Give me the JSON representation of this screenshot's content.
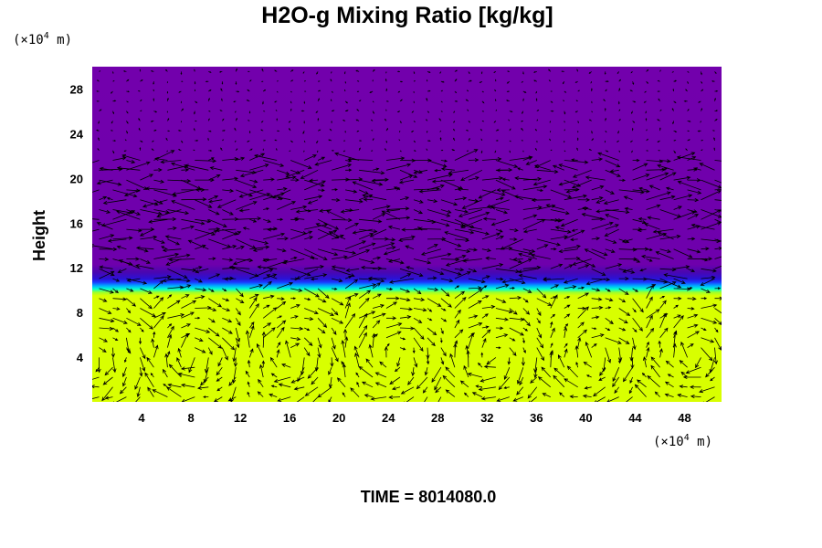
{
  "chart_data": {
    "type": "heatmap",
    "title": "H2O-g Mixing Ratio [kg/kg]",
    "ylabel": "Height",
    "x_unit": {
      "prefix": "(×10",
      "exp": "4",
      "suffix": " m)"
    },
    "y_unit": {
      "prefix": "(×10",
      "exp": "4",
      "suffix": " m)"
    },
    "footer": "TIME = 8014080.0",
    "xlim": [
      0,
      51
    ],
    "ylim": [
      0,
      30
    ],
    "x_ticks": [
      4,
      8,
      12,
      16,
      20,
      24,
      28,
      32,
      36,
      40,
      44,
      48
    ],
    "x_tick_labels": [
      "4",
      "8",
      "12",
      "16",
      "20",
      "24",
      "28",
      "32",
      "36",
      "40",
      "44",
      "48"
    ],
    "y_ticks": [
      4,
      8,
      12,
      16,
      20,
      24,
      28
    ],
    "y_tick_labels": [
      "4",
      "8",
      "12",
      "16",
      "20",
      "24",
      "28"
    ],
    "field_profile": {
      "height": [
        0,
        9.5,
        9.8,
        10.1,
        10.4,
        10.7,
        11.0,
        11.6,
        12.3,
        30
      ],
      "colors": [
        "#d8ff00",
        "#d8ff00",
        "#9eff2a",
        "#00ffd2",
        "#00a8ff",
        "#1a3cff",
        "#2a12d6",
        "#4a06b0",
        "#6e00ac",
        "#7200ac"
      ]
    },
    "overlay": "velocity vectors",
    "grid": false,
    "legend": "none",
    "colors": {
      "low_layer": "#d8ff00",
      "upper_layer": "#7200ac",
      "vectors": "#000000"
    }
  }
}
